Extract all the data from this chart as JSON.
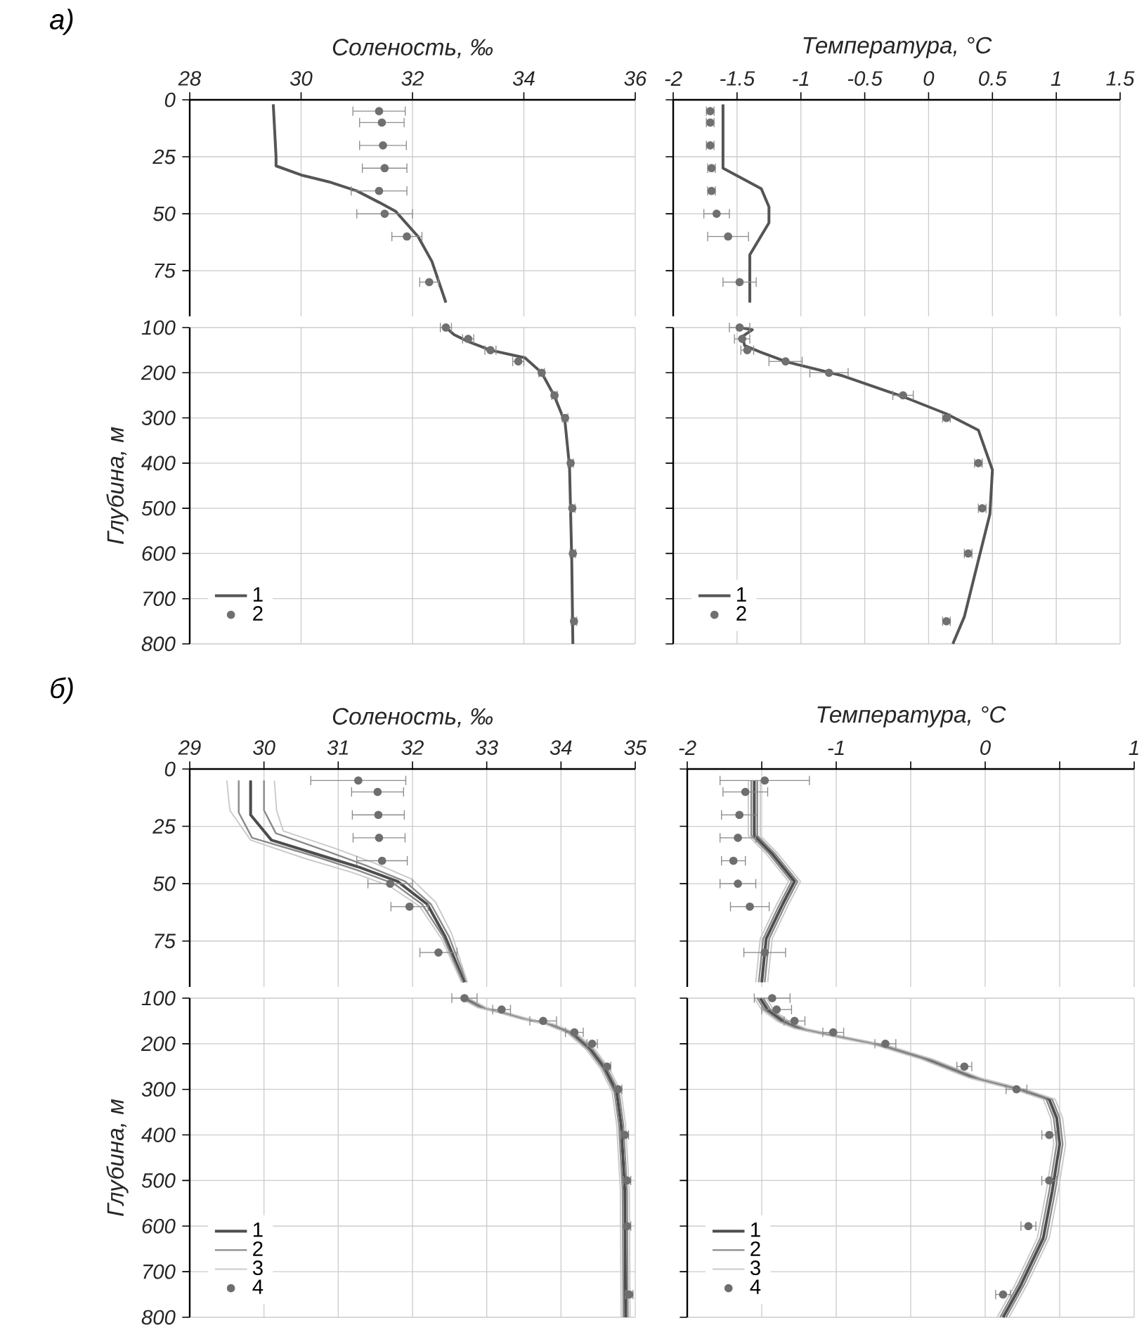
{
  "chart_data": [
    {
      "type": "line",
      "xlabel": "Соленость, ‰",
      "annotations": [
        "а)"
      ],
      "xlim": [
        28,
        36
      ],
      "xticks": [
        28,
        30,
        32,
        34,
        36
      ],
      "ylim": [
        95,
        0
      ],
      "yticks": [
        0,
        25,
        50,
        75
      ],
      "grid": true,
      "tick_labels": "xy",
      "series": [
        {
          "color": "#555555",
          "x": [
            29.5,
            29.55,
            29.55,
            30.0,
            30.5,
            31.0,
            31.4,
            31.7,
            32.1,
            32.35,
            32.6
          ],
          "values": [
            2,
            25,
            29,
            33,
            36,
            40,
            45,
            49,
            60,
            71,
            89
          ]
        },
        {
          "type": "scatter",
          "color": "#707070",
          "x": [
            31.4,
            31.45,
            31.47,
            31.5,
            31.4,
            31.5,
            31.9,
            32.3
          ],
          "values": [
            5,
            10,
            20,
            30,
            40,
            50,
            60,
            80
          ],
          "xerrors": [
            0.47,
            0.4,
            0.42,
            0.4,
            0.5,
            0.5,
            0.27,
            0.17
          ]
        }
      ]
    },
    {
      "type": "line",
      "ylabel": "Глубина, м",
      "xlim": [
        28,
        36
      ],
      "xticks": [
        28,
        30,
        32,
        34,
        36
      ],
      "ylim": [
        800,
        100
      ],
      "yticks": [
        100,
        200,
        300,
        400,
        500,
        600,
        700,
        800
      ],
      "grid": true,
      "tick_labels": "y",
      "legend": "bottom left",
      "series": [
        {
          "name": "1",
          "color": "#555555",
          "x": [
            32.6,
            32.75,
            33.0,
            33.4,
            34.02,
            34.32,
            34.55,
            34.74,
            34.82,
            34.86,
            34.88
          ],
          "values": [
            100,
            116,
            131,
            150,
            167,
            200,
            252,
            310,
            408,
            615,
            800
          ]
        },
        {
          "name": "2",
          "type": "scatter",
          "color": "#707070",
          "x": [
            32.6,
            33.0,
            33.4,
            33.9,
            34.32,
            34.55,
            34.74,
            34.84,
            34.87,
            34.88,
            34.9
          ],
          "values": [
            100,
            125,
            150,
            175,
            200,
            250,
            300,
            400,
            500,
            600,
            750
          ],
          "xerrors": [
            0.1,
            0.1,
            0.1,
            0.1,
            0.05,
            0.05,
            0.05,
            0.05,
            0.05,
            0.05,
            0.05
          ]
        }
      ]
    },
    {
      "type": "line",
      "xlabel": "Температура, °C",
      "xlim": [
        -2,
        1.5
      ],
      "xticks": [
        -2,
        -1.5,
        -1,
        -0.5,
        0,
        0.5,
        1,
        1.5
      ],
      "ylim": [
        95,
        0
      ],
      "yticks": [
        0,
        25,
        50,
        75
      ],
      "grid": true,
      "tick_labels": "x",
      "series": [
        {
          "color": "#555555",
          "x": [
            -1.61,
            -1.61,
            -1.31,
            -1.25,
            -1.25,
            -1.4,
            -1.4
          ],
          "values": [
            2,
            30,
            39,
            47,
            54,
            68,
            89
          ]
        },
        {
          "type": "scatter",
          "color": "#707070",
          "x": [
            -1.71,
            -1.71,
            -1.71,
            -1.7,
            -1.7,
            -1.66,
            -1.57,
            -1.48
          ],
          "values": [
            5,
            10,
            20,
            30,
            40,
            50,
            60,
            80
          ],
          "xerrors": [
            0.03,
            0.03,
            0.03,
            0.03,
            0.03,
            0.1,
            0.16,
            0.13
          ]
        }
      ]
    },
    {
      "type": "line",
      "xlim": [
        -2,
        1.5
      ],
      "xticks": [
        -2,
        -1.5,
        -1,
        -0.5,
        0,
        0.5,
        1,
        1.5
      ],
      "ylim": [
        800,
        100
      ],
      "yticks": [
        100,
        200,
        300,
        400,
        500,
        600,
        700,
        800
      ],
      "grid": true,
      "tick_labels": false,
      "legend": "bottom left",
      "series": [
        {
          "name": "1",
          "color": "#555555",
          "x": [
            -1.47,
            -1.38,
            -1.46,
            -1.44,
            -1.31,
            -1.11,
            -0.67,
            -0.19,
            0.14,
            0.39,
            0.5,
            0.48,
            0.39,
            0.28,
            0.19
          ],
          "values": [
            100,
            105,
            120,
            140,
            155,
            176,
            207,
            254,
            291,
            327,
            415,
            513,
            615,
            740,
            800
          ]
        },
        {
          "name": "2",
          "type": "scatter",
          "color": "#707070",
          "x": [
            -1.48,
            -1.46,
            -1.42,
            -1.12,
            -0.78,
            -0.2,
            0.14,
            0.39,
            0.42,
            0.31,
            0.14
          ],
          "values": [
            100,
            125,
            150,
            175,
            200,
            250,
            300,
            400,
            500,
            600,
            750
          ],
          "xerrors": [
            0.08,
            0.06,
            0.05,
            0.13,
            0.15,
            0.08,
            0.03,
            0.03,
            0.03,
            0.03,
            0.03
          ]
        }
      ]
    },
    {
      "type": "line",
      "xlabel": "Соленость, ‰",
      "annotations": [
        "б)"
      ],
      "xlim": [
        29,
        35
      ],
      "xticks": [
        29,
        30,
        31,
        32,
        33,
        34,
        35
      ],
      "ylim": [
        95,
        0
      ],
      "yticks": [
        0,
        25,
        50,
        75
      ],
      "grid": true,
      "tick_labels": "xy",
      "series": [
        {
          "color": "#4d4d4d",
          "x": [
            29.82,
            29.82,
            30.1,
            30.8,
            31.3,
            31.8,
            32.2,
            32.44,
            32.7
          ],
          "values": [
            5,
            20,
            31,
            38,
            43,
            49,
            59,
            73,
            93
          ]
        },
        {
          "color": "#8a8a8a",
          "x": [
            29.66,
            29.66,
            29.84,
            30.68,
            31.25,
            31.75,
            32.13,
            32.41,
            32.68
          ],
          "values": [
            5,
            19,
            30,
            38,
            44,
            50,
            59,
            73,
            93
          ]
        },
        {
          "color": "#8a8a8a",
          "x": [
            30.0,
            30.0,
            30.16,
            30.86,
            31.37,
            31.9,
            32.25,
            32.49,
            32.73
          ],
          "values": [
            5,
            18,
            28,
            36,
            42,
            49,
            59,
            73,
            93
          ]
        },
        {
          "color": "#c9c9c9",
          "x": [
            29.5,
            29.54,
            29.82,
            30.55,
            31.18,
            31.69,
            32.1,
            32.39,
            32.66
          ],
          "values": [
            5,
            18,
            31,
            39,
            45,
            51,
            60,
            74,
            93
          ]
        },
        {
          "color": "#c9c9c9",
          "x": [
            30.14,
            30.17,
            30.26,
            30.99,
            31.49,
            31.99,
            32.31,
            32.53,
            32.74
          ],
          "values": [
            5,
            18,
            27,
            35,
            41,
            48,
            58,
            72,
            93
          ]
        },
        {
          "type": "scatter",
          "color": "#6e6e6e",
          "x": [
            31.27,
            31.53,
            31.54,
            31.55,
            31.59,
            31.7,
            31.96,
            32.35
          ],
          "values": [
            5,
            10,
            20,
            30,
            40,
            50,
            60,
            80
          ],
          "xerrors": [
            0.64,
            0.35,
            0.35,
            0.35,
            0.34,
            0.3,
            0.25,
            0.25
          ]
        }
      ]
    },
    {
      "type": "line",
      "ylabel": "Глубина, м",
      "xlim": [
        29,
        35
      ],
      "xticks": [
        29,
        30,
        31,
        32,
        33,
        34,
        35
      ],
      "ylim": [
        800,
        100
      ],
      "yticks": [
        100,
        200,
        300,
        400,
        500,
        600,
        700,
        800
      ],
      "grid": true,
      "tick_labels": "y",
      "legend": "bottom left",
      "series": [
        {
          "name": "1",
          "color": "#4d4d4d",
          "x": [
            32.7,
            32.94,
            33.2,
            33.52,
            33.83,
            34.15,
            34.4,
            34.59,
            34.75,
            34.81,
            34.86,
            34.87
          ],
          "values": [
            100,
            121,
            131,
            146,
            156,
            177,
            213,
            254,
            306,
            378,
            522,
            800
          ]
        },
        {
          "name": "2",
          "color": "#8a8a8a",
          "x": [
            32.67,
            32.91,
            33.17,
            33.49,
            33.8,
            34.12,
            34.37,
            34.56,
            34.72,
            34.78,
            34.83,
            34.84
          ],
          "values": [
            100,
            121,
            131,
            146,
            156,
            177,
            213,
            254,
            306,
            378,
            522,
            800
          ]
        },
        {
          "color": "#8a8a8a",
          "x": [
            32.73,
            32.97,
            33.23,
            33.55,
            33.86,
            34.18,
            34.43,
            34.62,
            34.78,
            34.84,
            34.89,
            34.9
          ],
          "values": [
            100,
            121,
            131,
            146,
            156,
            177,
            213,
            254,
            306,
            378,
            522,
            800
          ]
        },
        {
          "name": "3",
          "color": "#c9c9c9",
          "x": [
            32.64,
            32.88,
            33.14,
            33.46,
            33.77,
            34.09,
            34.34,
            34.53,
            34.69,
            34.75,
            34.8,
            34.81
          ],
          "values": [
            100,
            121,
            131,
            146,
            156,
            177,
            213,
            254,
            306,
            378,
            522,
            800
          ]
        },
        {
          "color": "#c9c9c9",
          "x": [
            32.76,
            33.0,
            33.26,
            33.58,
            33.89,
            34.21,
            34.46,
            34.65,
            34.81,
            34.87,
            34.92,
            34.93
          ],
          "values": [
            100,
            121,
            131,
            146,
            156,
            177,
            213,
            254,
            306,
            378,
            522,
            800
          ]
        },
        {
          "name": "4",
          "type": "scatter",
          "color": "#6e6e6e",
          "x": [
            32.7,
            33.2,
            33.76,
            34.18,
            34.42,
            34.62,
            34.77,
            34.86,
            34.89,
            34.89,
            34.92
          ],
          "values": [
            100,
            125,
            150,
            175,
            200,
            250,
            300,
            400,
            500,
            600,
            750
          ],
          "xerrors": [
            0.17,
            0.12,
            0.18,
            0.12,
            0.07,
            0.05,
            0.05,
            0.05,
            0.05,
            0.05,
            0.05
          ]
        }
      ]
    },
    {
      "type": "line",
      "xlabel": "Температура, °C",
      "xlim": [
        -2,
        1
      ],
      "xticks": [
        -2,
        {
          "value": -1.5,
          "label": null
        },
        -1,
        {
          "value": -0.5,
          "label": null
        },
        0,
        {
          "value": 0.5,
          "label": null
        },
        1
      ],
      "ylim": [
        95,
        0
      ],
      "yticks": [
        0,
        25,
        50,
        75
      ],
      "grid": true,
      "tick_labels": "x",
      "series": [
        {
          "color": "#4d4d4d",
          "x": [
            -1.55,
            -1.55,
            -1.43,
            -1.28,
            -1.36,
            -1.47,
            -1.5
          ],
          "values": [
            5,
            29,
            37,
            49,
            59,
            74,
            93
          ]
        },
        {
          "color": "#8a8a8a",
          "x": [
            -1.57,
            -1.57,
            -1.45,
            -1.3,
            -1.38,
            -1.49,
            -1.52
          ],
          "values": [
            5,
            29,
            37,
            49,
            59,
            74,
            93
          ]
        },
        {
          "color": "#8a8a8a",
          "x": [
            -1.53,
            -1.53,
            -1.41,
            -1.26,
            -1.34,
            -1.45,
            -1.48
          ],
          "values": [
            5,
            29,
            37,
            49,
            59,
            74,
            93
          ]
        },
        {
          "color": "#c9c9c9",
          "x": [
            -1.59,
            -1.59,
            -1.47,
            -1.32,
            -1.4,
            -1.51,
            -1.54
          ],
          "values": [
            5,
            29,
            37,
            49,
            59,
            74,
            93
          ]
        },
        {
          "color": "#c9c9c9",
          "x": [
            -1.51,
            -1.51,
            -1.39,
            -1.24,
            -1.32,
            -1.43,
            -1.46
          ],
          "values": [
            5,
            29,
            37,
            49,
            59,
            74,
            93
          ]
        },
        {
          "type": "scatter",
          "color": "#6e6e6e",
          "x": [
            -1.48,
            -1.61,
            -1.65,
            -1.66,
            -1.69,
            -1.66,
            -1.58,
            -1.48
          ],
          "values": [
            5,
            10,
            20,
            30,
            40,
            50,
            60,
            80
          ],
          "xerrors": [
            0.3,
            0.15,
            0.12,
            0.12,
            0.08,
            0.12,
            0.13,
            0.14
          ]
        }
      ]
    },
    {
      "type": "line",
      "xlim": [
        -2,
        1
      ],
      "xticks": [
        -2,
        {
          "value": -1.5,
          "label": null
        },
        -1,
        {
          "value": -0.5,
          "label": null
        },
        0,
        {
          "value": 0.5,
          "label": null
        },
        1
      ],
      "ylim": [
        800,
        100
      ],
      "yticks": [
        100,
        200,
        300,
        400,
        500,
        600,
        700,
        800
      ],
      "grid": true,
      "tick_labels": false,
      "legend": "bottom left",
      "series": [
        {
          "name": "1",
          "color": "#4d4d4d",
          "x": [
            -1.51,
            -1.46,
            -1.35,
            -1.24,
            -1.02,
            -0.7,
            -0.39,
            -0.07,
            0.24,
            0.43,
            0.48,
            0.5,
            0.45,
            0.39,
            0.24,
            0.12
          ],
          "values": [
            100,
            126,
            152,
            167,
            182,
            203,
            234,
            275,
            301,
            322,
            363,
            420,
            523,
            626,
            729,
            800
          ]
        },
        {
          "name": "2",
          "color": "#8a8a8a",
          "x": [
            -1.53,
            -1.48,
            -1.37,
            -1.26,
            -1.04,
            -0.72,
            -0.41,
            -0.09,
            0.22,
            0.41,
            0.46,
            0.48,
            0.43,
            0.37,
            0.22,
            0.1
          ],
          "values": [
            100,
            126,
            152,
            167,
            182,
            203,
            234,
            275,
            301,
            322,
            363,
            420,
            523,
            626,
            729,
            800
          ]
        },
        {
          "color": "#8a8a8a",
          "x": [
            -1.49,
            -1.44,
            -1.33,
            -1.22,
            -1.0,
            -0.68,
            -0.37,
            -0.05,
            0.26,
            0.45,
            0.5,
            0.52,
            0.47,
            0.41,
            0.26,
            0.14
          ],
          "values": [
            100,
            126,
            152,
            167,
            182,
            203,
            234,
            275,
            301,
            322,
            363,
            420,
            523,
            626,
            729,
            800
          ]
        },
        {
          "name": "3",
          "color": "#c9c9c9",
          "x": [
            -1.55,
            -1.5,
            -1.39,
            -1.28,
            -1.06,
            -0.74,
            -0.43,
            -0.11,
            0.2,
            0.39,
            0.44,
            0.46,
            0.41,
            0.35,
            0.2,
            0.08
          ],
          "values": [
            100,
            126,
            152,
            167,
            182,
            203,
            234,
            275,
            301,
            322,
            363,
            420,
            523,
            626,
            729,
            800
          ]
        },
        {
          "color": "#c9c9c9",
          "x": [
            -1.47,
            -1.42,
            -1.31,
            -1.2,
            -0.98,
            -0.66,
            -0.35,
            -0.03,
            0.28,
            0.47,
            0.52,
            0.54,
            0.49,
            0.43,
            0.28,
            0.16
          ],
          "values": [
            100,
            126,
            152,
            167,
            182,
            203,
            234,
            275,
            301,
            322,
            363,
            420,
            523,
            626,
            729,
            800
          ]
        },
        {
          "name": "4",
          "type": "scatter",
          "color": "#6e6e6e",
          "x": [
            -1.43,
            -1.4,
            -1.28,
            -1.02,
            -0.67,
            -0.14,
            0.21,
            0.43,
            0.43,
            0.29,
            0.12
          ],
          "values": [
            100,
            125,
            150,
            175,
            200,
            250,
            300,
            400,
            500,
            600,
            750
          ],
          "xerrors": [
            0.12,
            0.1,
            0.07,
            0.07,
            0.07,
            0.05,
            0.07,
            0.05,
            0.05,
            0.05,
            0.05
          ]
        }
      ]
    }
  ]
}
